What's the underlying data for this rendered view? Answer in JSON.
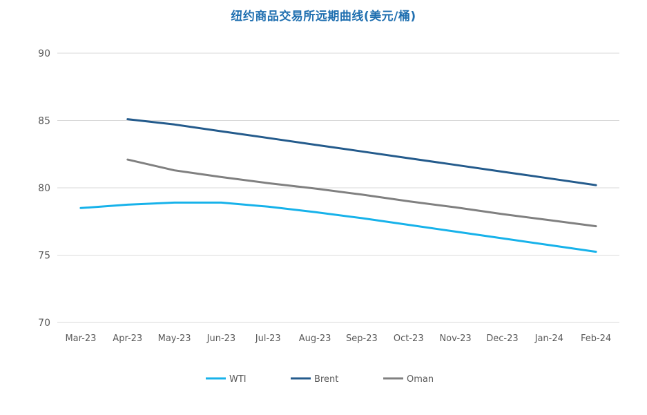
{
  "colors": {
    "title": "#1f6fb0",
    "grid": "#d9d9d9",
    "axis_text": "#595959",
    "background": "#ffffff"
  },
  "chart_data": {
    "type": "line",
    "title": "纽约商品交易所远期曲线(美元/桶)",
    "xlabel": "",
    "ylabel": "",
    "categories": [
      "Mar-23",
      "Apr-23",
      "May-23",
      "Jun-23",
      "Jul-23",
      "Aug-23",
      "Sep-23",
      "Oct-23",
      "Nov-23",
      "Dec-23",
      "Jan-24",
      "Feb-24"
    ],
    "ylim": [
      70,
      90
    ],
    "yticks": [
      70,
      75,
      80,
      85,
      90
    ],
    "grid": true,
    "legend_position": "bottom",
    "series": [
      {
        "name": "WTI",
        "color": "#17b2ea",
        "values": [
          78.5,
          78.75,
          78.9,
          78.9,
          78.6,
          78.2,
          77.75,
          77.25,
          76.75,
          76.25,
          75.75,
          75.25
        ]
      },
      {
        "name": "Brent",
        "color": "#245b8c",
        "values": [
          null,
          85.1,
          84.7,
          84.2,
          83.7,
          83.2,
          82.7,
          82.2,
          81.7,
          81.2,
          80.7,
          80.2
        ]
      },
      {
        "name": "Oman",
        "color": "#808080",
        "values": [
          null,
          82.1,
          81.3,
          80.8,
          80.35,
          79.95,
          79.5,
          79.0,
          78.55,
          78.05,
          77.6,
          77.15
        ]
      }
    ]
  }
}
